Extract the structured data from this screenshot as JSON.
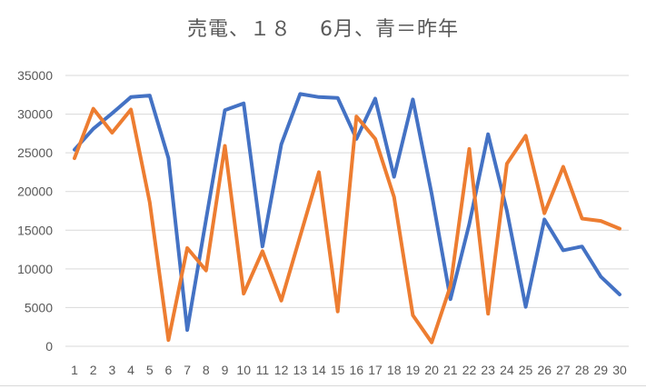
{
  "title": "売電、１８　 6月、青＝昨年",
  "chart_data": {
    "type": "line",
    "title": "売電、１８　 6月、青＝昨年",
    "xlabel": "",
    "ylabel": "",
    "ylim": [
      0,
      35000
    ],
    "yticks": [
      0,
      5000,
      10000,
      15000,
      20000,
      25000,
      30000,
      35000
    ],
    "grid": true,
    "legend": "none",
    "categories": [
      "1",
      "2",
      "3",
      "4",
      "5",
      "6",
      "7",
      "8",
      "9",
      "10",
      "11",
      "12",
      "13",
      "14",
      "15",
      "16",
      "17",
      "18",
      "19",
      "20",
      "21",
      "22",
      "23",
      "24",
      "25",
      "26",
      "27",
      "28",
      "29",
      "30"
    ],
    "series": [
      {
        "color": "#4472c4",
        "values": [
          25400,
          28100,
          30100,
          32200,
          32400,
          24300,
          2100,
          16400,
          30500,
          31400,
          12900,
          26100,
          32600,
          32200,
          32100,
          26800,
          32000,
          21900,
          31900,
          19700,
          6100,
          15800,
          27400,
          17500,
          5100,
          16400,
          12400,
          12900,
          9000,
          6700
        ]
      },
      {
        "color": "#ed7d31",
        "values": [
          24300,
          30700,
          27600,
          30600,
          18600,
          800,
          12700,
          9800,
          25900,
          6800,
          12300,
          5900,
          14200,
          22500,
          4500,
          29700,
          26800,
          19300,
          4000,
          500,
          7800,
          25500,
          4200,
          23600,
          27200,
          17200,
          23200,
          16500,
          16200,
          15200
        ]
      }
    ]
  }
}
